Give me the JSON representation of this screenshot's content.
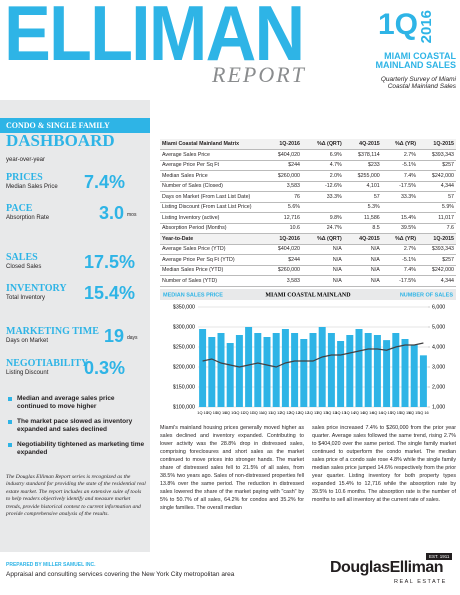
{
  "header": {
    "title": "ELLIMAN",
    "subtitle": "REPORT",
    "quarter": "1Q",
    "year": "2016",
    "market": "MIAMI COASTAL MAINLAND SALES",
    "description": "Quarterly Survey of Miami Coastal Mainland Sales"
  },
  "dashboard": {
    "band": "CONDO & SINGLE FAMILY",
    "title": "DASHBOARD",
    "period": "year-over-year",
    "items": [
      {
        "label": "PRICES",
        "sub": "Median Sales Price",
        "value": "7.4%"
      },
      {
        "label": "PACE",
        "sub": "Absorption Rate",
        "value": "3.0",
        "unit": "mos"
      },
      {
        "label": "SALES",
        "sub": "Closed Sales",
        "value": "17.5%"
      },
      {
        "label": "INVENTORY",
        "sub": "Total Inventory",
        "value": "15.4%"
      },
      {
        "label": "MARKETING TIME",
        "sub": "Days on Market",
        "value": "19",
        "unit": "days"
      },
      {
        "label": "NEGOTIABILITY",
        "sub": "Listing Discount",
        "value": "0.3%"
      }
    ],
    "bullets": [
      "Median and average sales price continued to move higher",
      "The market pace slowed as inventory expanded and sales declined",
      "Negotiability tightened as marketing time expanded"
    ],
    "about": "The Douglas Elliman Report series is recognized as the industry standard for providing the state of the residential real estate market. The report includes an extensive suite of tools to help readers objectively identify and measure market trends, provide historical context to current information and provide comprehensive analysis of the results."
  },
  "table": {
    "header": [
      "Miami Coastal Mainland Matrix",
      "1Q-2016",
      "%Δ (QRT)",
      "4Q-2015",
      "%Δ (YR)",
      "1Q-2015"
    ],
    "rows": [
      [
        "Average Sales Price",
        "$404,020",
        "6.9%",
        "$378,114",
        "2.7%",
        "$393,343"
      ],
      [
        "Average Price Per Sq Ft",
        "$244",
        "4.7%",
        "$233",
        "-5.1%",
        "$257"
      ],
      [
        "Median Sales Price",
        "$260,000",
        "2.0%",
        "$255,000",
        "7.4%",
        "$242,000"
      ],
      [
        "Number of Sales (Closed)",
        "3,583",
        "-12.6%",
        "4,101",
        "-17.5%",
        "4,344"
      ],
      [
        "Days on Market (From Last List Date)",
        "76",
        "33.3%",
        "57",
        "33.3%",
        "57"
      ],
      [
        "Listing Discount (From Last List Price)",
        "5.6%",
        null,
        "5.3%",
        null,
        "5.9%"
      ],
      [
        "Listing Inventory (active)",
        "12,716",
        "9.8%",
        "11,586",
        "15.4%",
        "11,017"
      ],
      [
        "Absorption Period (Months)",
        "10.6",
        "24.7%",
        "8.5",
        "39.5%",
        "7.6"
      ]
    ],
    "ytd_header": [
      "Year-to-Date",
      "1Q-2016",
      "%Δ (QRT)",
      "4Q-2015",
      "%Δ (YR)",
      "1Q-2015"
    ],
    "ytd_rows": [
      [
        "Average Sales Price (YTD)",
        "$404,020",
        "N/A",
        "N/A",
        "2.7%",
        "$393,343"
      ],
      [
        "Average Price Per Sq Ft (YTD)",
        "$244",
        "N/A",
        "N/A",
        "-5.1%",
        "$257"
      ],
      [
        "Median Sales Price (YTD)",
        "$260,000",
        "N/A",
        "N/A",
        "7.4%",
        "$242,000"
      ],
      [
        "Number of Sales (YTD)",
        "3,583",
        "N/A",
        "N/A",
        "-17.5%",
        "4,344"
      ]
    ]
  },
  "chart_data": {
    "type": "bar",
    "title": "MIAMI COASTAL MAINLAND",
    "categories": [
      "1Q 10",
      "2Q 10",
      "3Q 10",
      "4Q 10",
      "1Q 11",
      "2Q 11",
      "3Q 11",
      "4Q 11",
      "1Q 12",
      "2Q 12",
      "3Q 12",
      "4Q 12",
      "1Q 13",
      "2Q 13",
      "3Q 13",
      "4Q 13",
      "1Q 14",
      "2Q 14",
      "3Q 14",
      "4Q 14",
      "1Q 15",
      "2Q 15",
      "3Q 15",
      "4Q 15",
      "1Q 16"
    ],
    "series": [
      {
        "name": "MEDIAN SALES PRICE",
        "type": "line",
        "color": "#414042",
        "values": [
          215000,
          220000,
          210000,
          205000,
          200000,
          205000,
          210000,
          205000,
          200000,
          210000,
          215000,
          215000,
          215000,
          225000,
          230000,
          230000,
          235000,
          240000,
          245000,
          245000,
          242000,
          250000,
          255000,
          255000,
          260000
        ]
      },
      {
        "name": "NUMBER OF SALES",
        "type": "bar",
        "axis": "y2",
        "color": "#2eb4e6",
        "values": [
          4900,
          4500,
          4700,
          4200,
          4600,
          5000,
          4700,
          4500,
          4700,
          4900,
          4700,
          4400,
          4700,
          5000,
          4700,
          4300,
          4600,
          4900,
          4700,
          4600,
          4344,
          4700,
          4400,
          4101,
          3583
        ]
      }
    ],
    "ylim": [
      100000,
      350000
    ],
    "yticks": [
      {
        "value": 100000,
        "label": "$100,000"
      },
      {
        "value": 150000,
        "label": "$150,000"
      },
      {
        "value": 200000,
        "label": "$200,000"
      },
      {
        "value": 250000,
        "label": "$250,000"
      },
      {
        "value": 300000,
        "label": "$300,000"
      },
      {
        "value": 350000,
        "label": "$350,000"
      }
    ],
    "y2lim": [
      1000,
      6000
    ],
    "y2ticks": [
      {
        "value": 1000,
        "label": "1,000"
      },
      {
        "value": 2000,
        "label": "2,000"
      },
      {
        "value": 3000,
        "label": "3,000"
      },
      {
        "value": 4000,
        "label": "4,000"
      },
      {
        "value": 5000,
        "label": "5,000"
      },
      {
        "value": 6000,
        "label": "6,000"
      }
    ],
    "grid": true
  },
  "body": [
    "Miami's mainland housing prices generally moved higher as sales declined and inventory expanded. Contributing to lower activity was the 28.8% drop in distressed sales, comprising foreclosures and short sales as the market continued to move prices into stronger hands. The market share of distressed sales fell to 21.5% of all sales, from 38.5% two years ago. Sales of non-distressed properties fell 13.8% over the same period. The reduction in distressed sales lowered the share of the market paying with \"cash\" by 5% to 50.7% of all sales, 64.2% for condos and 35.2% for single families. The overall median",
    "sales price increased 7.4% to $260,000 from the prior year quarter. Average sales followed the same trend, rising 2.7% to $404,020 over the same period. The single family market continued to outperform the condo market. The median sales price of a condo sale rose 4.8% while the single family median sales price jumped 14.6% respectively from the prior year quarter. Listing inventory for both property types expanded 15.4% to 12,716 while the absorption rate by 39.5% to 10.6 months. The absorption rate is the number of months to sell all inventory at the current rate of sales."
  ],
  "footer": {
    "prepared": "PREPARED BY MILLER SAMUEL INC.",
    "services": "Appraisal and consulting services covering the New York City metropolitan area",
    "logo": "DouglasElliman",
    "logo_sub": "REAL ESTATE",
    "logo_est": "EST. 1911"
  }
}
